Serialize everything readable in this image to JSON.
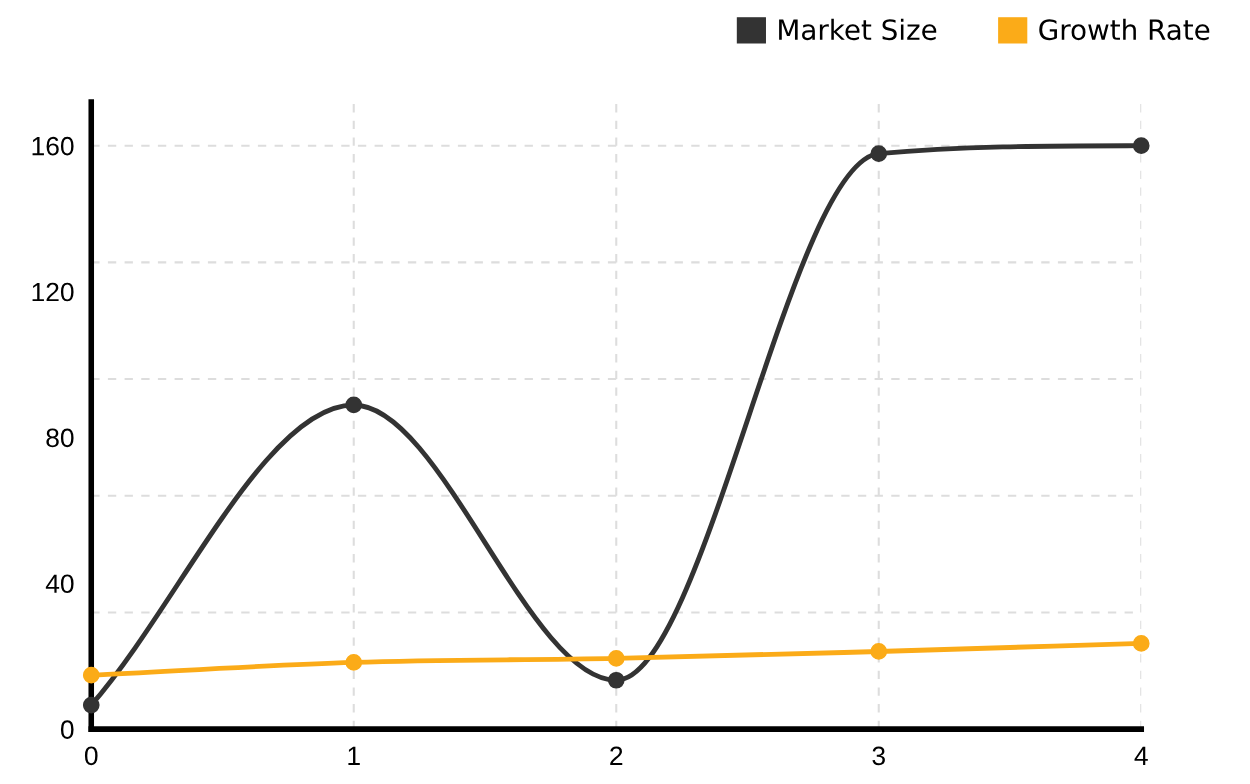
{
  "chart_data": {
    "type": "line",
    "x": [
      0,
      1,
      2,
      3,
      4
    ],
    "series": [
      {
        "name": "Market Size",
        "color": "#333333",
        "values": [
          6.6,
          88.9,
          13.4,
          157.8,
          160
        ]
      },
      {
        "name": "Growth Rate",
        "color": "#fbab18",
        "values": [
          14.8,
          18.3,
          19.4,
          21.3,
          23.5
        ]
      }
    ],
    "xlim": [
      0,
      4
    ],
    "xticks": [
      0,
      1,
      2,
      3,
      4
    ],
    "ylim": [
      0,
      172
    ],
    "yticks": [
      0,
      {
        "value": 32,
        "label": null
      },
      40,
      {
        "value": 64,
        "label": null
      },
      80,
      {
        "value": 96,
        "label": null
      },
      120,
      {
        "value": 128,
        "label": null
      },
      160
    ],
    "grid": true,
    "legend": "top right",
    "marker": "circle",
    "line_style": "solid"
  }
}
